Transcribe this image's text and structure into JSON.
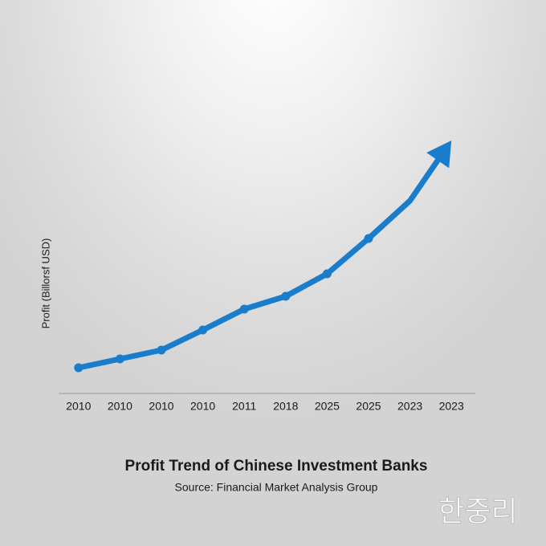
{
  "chart_data": {
    "type": "line",
    "title": "Profit Trend of Chinese Investment Banks",
    "subtitle": "Source: Financial Market Analysis Group",
    "y_label": "Profit (Billorsf USD)",
    "categories": [
      "2010",
      "2010",
      "2010",
      "2010",
      "2011",
      "2018",
      "2025",
      "2025",
      "2023",
      "2023"
    ],
    "values": [
      32,
      43,
      54,
      79,
      105,
      121,
      149,
      193,
      240,
      315
    ],
    "color": "#1a7dcc",
    "ylim": [
      0,
      330
    ],
    "arrow_end": true
  },
  "watermark": "한중리"
}
